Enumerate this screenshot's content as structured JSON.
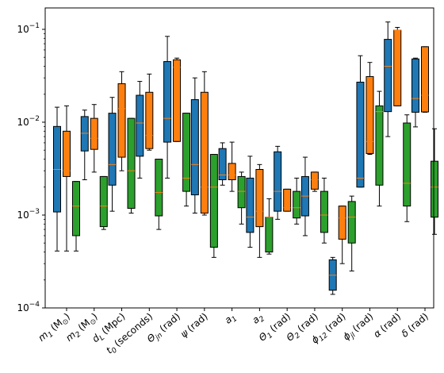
{
  "chart_data": {
    "type": "box",
    "title": "",
    "xlabel": "",
    "ylabel": "",
    "yscale": "log",
    "ylim": [
      0.0001,
      0.17
    ],
    "grid": false,
    "legend": "none",
    "yticks": [
      {
        "value": 0.0001,
        "base": "10",
        "exp": "−4"
      },
      {
        "value": 0.001,
        "base": "10",
        "exp": "−3"
      },
      {
        "value": 0.01,
        "base": "10",
        "exp": "−2"
      },
      {
        "value": 0.1,
        "base": "10",
        "exp": "−1"
      }
    ],
    "categories": [
      {
        "main": "m",
        "sub": "1",
        "unit": "(M",
        "unitsub": "⊙",
        "close": ")"
      },
      {
        "main": "m",
        "sub": "2",
        "unit": "(M",
        "unitsub": "⊙",
        "close": ")"
      },
      {
        "main": "d",
        "sub": "L",
        "unit": "(Mpc)",
        "unitsub": "",
        "close": ""
      },
      {
        "main": "t",
        "sub": "0",
        "unit": "(seconds)",
        "unitsub": "",
        "close": ""
      },
      {
        "main": "Θ",
        "sub": "jn",
        "unit": "(rad)",
        "unitsub": "",
        "close": ""
      },
      {
        "main": "ψ",
        "sub": "",
        "unit": "(rad)",
        "unitsub": "",
        "close": ""
      },
      {
        "main": "a",
        "sub": "1",
        "unit": "",
        "unitsub": "",
        "close": ""
      },
      {
        "main": "a",
        "sub": "2",
        "unit": "",
        "unitsub": "",
        "close": ""
      },
      {
        "main": "Θ",
        "sub": "1",
        "unit": "(rad)",
        "unitsub": "",
        "close": ""
      },
      {
        "main": "Θ",
        "sub": "2",
        "unit": "(rad)",
        "unitsub": "",
        "close": ""
      },
      {
        "main": "ϕ",
        "sub": "12",
        "unit": "(rad)",
        "unitsub": "",
        "close": ""
      },
      {
        "main": "ϕ",
        "sub": "jl",
        "unit": "(rad)",
        "unitsub": "",
        "close": ""
      },
      {
        "main": "α",
        "sub": "",
        "unit": "(rad)",
        "unitsub": "",
        "close": ""
      },
      {
        "main": "δ",
        "sub": "",
        "unit": "(rad)",
        "unitsub": "",
        "close": ""
      }
    ],
    "colors": {
      "blue": "#1f77b4",
      "orange": "#ff7f0e",
      "green": "#2ca02c",
      "median": "#ff7f0e",
      "whisker": "#000000"
    },
    "series": [
      {
        "color": "blue",
        "boxes": [
          {
            "whislo": 0.00041,
            "q1": 0.00108,
            "med": 0.0031,
            "q3": 0.009,
            "whishi": 0.0145
          },
          {
            "whislo": 0.0024,
            "q1": 0.0049,
            "med": 0.0076,
            "q3": 0.0115,
            "whishi": 0.0135
          },
          {
            "whislo": 0.0011,
            "q1": 0.0021,
            "med": 0.0035,
            "q3": 0.0125,
            "whishi": 0.0185
          },
          {
            "whislo": 0.0025,
            "q1": 0.0043,
            "med": 0.0098,
            "q3": 0.0195,
            "whishi": 0.0275
          },
          {
            "whislo": 0.0025,
            "q1": 0.0061,
            "med": 0.011,
            "q3": 0.045,
            "whishi": 0.084
          },
          {
            "whislo": 0.00105,
            "q1": 0.00165,
            "med": 0.0035,
            "q3": 0.0175,
            "whishi": 0.03
          },
          {
            "whislo": 0.0021,
            "q1": 0.0024,
            "med": 0.0027,
            "q3": 0.0052,
            "whishi": 0.006
          },
          {
            "whislo": 0.00045,
            "q1": 0.00065,
            "med": 0.00095,
            "q3": 0.0025,
            "whishi": 0.0043
          },
          {
            "whislo": 0.0009,
            "q1": 0.0011,
            "med": 0.0018,
            "q3": 0.0048,
            "whishi": 0.0055
          },
          {
            "whislo": 0.0006,
            "q1": 0.00098,
            "med": 0.0016,
            "q3": 0.0026,
            "whishi": 0.0042
          },
          {
            "whislo": 0.00014,
            "q1": 0.000155,
            "med": 0.000225,
            "q3": 0.00033,
            "whishi": 0.00035
          },
          {
            "whislo": 0.002,
            "q1": 0.002,
            "med": 0.0025,
            "q3": 0.027,
            "whishi": 0.052
          },
          {
            "whislo": 0.007,
            "q1": 0.013,
            "med": 0.04,
            "q3": 0.078,
            "whishi": 0.12
          },
          {
            "whislo": 0.0089,
            "q1": 0.0128,
            "med": 0.018,
            "q3": 0.048,
            "whishi": 0.049
          }
        ]
      },
      {
        "color": "orange",
        "boxes": [
          {
            "whislo": 0.00041,
            "q1": 0.0026,
            "med": 0.003,
            "q3": 0.008,
            "whishi": 0.015
          },
          {
            "whislo": 0.0029,
            "q1": 0.0051,
            "med": 0.0067,
            "q3": 0.011,
            "whishi": 0.0155
          },
          {
            "whislo": 0.003,
            "q1": 0.0042,
            "med": 0.014,
            "q3": 0.026,
            "whishi": 0.035
          },
          {
            "whislo": 0.005,
            "q1": 0.0052,
            "med": 0.0072,
            "q3": 0.021,
            "whishi": 0.033
          },
          {
            "whislo": 0.0062,
            "q1": 0.0062,
            "med": 0.039,
            "q3": 0.047,
            "whishi": 0.049
          },
          {
            "whislo": 0.001,
            "q1": 0.00105,
            "med": 0.002,
            "q3": 0.021,
            "whishi": 0.035
          },
          {
            "whislo": 0.0018,
            "q1": 0.0024,
            "med": 0.0027,
            "q3": 0.0036,
            "whishi": 0.0061
          },
          {
            "whislo": 0.00035,
            "q1": 0.00075,
            "med": 0.0011,
            "q3": 0.0031,
            "whishi": 0.0035
          },
          {
            "whislo": 0.0011,
            "q1": 0.0011,
            "med": 0.0012,
            "q3": 0.0019,
            "whishi": 0.0019
          },
          {
            "whislo": 0.0018,
            "q1": 0.0019,
            "med": 0.0024,
            "q3": 0.0029,
            "whishi": 0.0029
          },
          {
            "whislo": 0.0003,
            "q1": 0.00055,
            "med": 0.00093,
            "q3": 0.00125,
            "whishi": 0.00125
          },
          {
            "whislo": 0.0045,
            "q1": 0.0046,
            "med": 0.0062,
            "q3": 0.031,
            "whishi": 0.044
          },
          {
            "whislo": 0.015,
            "q1": 0.015,
            "med": 0.098,
            "q3": 0.098,
            "whishi": 0.105
          },
          {
            "whislo": 0.0128,
            "q1": 0.0129,
            "med": 0.0195,
            "q3": 0.065,
            "whishi": 0.065
          }
        ]
      },
      {
        "color": "green",
        "boxes": [
          {
            "whislo": 0.00041,
            "q1": 0.0006,
            "med": 0.00125,
            "q3": 0.0023,
            "whishi": 0.0023
          },
          {
            "whislo": 0.0007,
            "q1": 0.00075,
            "med": 0.00125,
            "q3": 0.0026,
            "whishi": 0.0026
          },
          {
            "whislo": 0.00105,
            "q1": 0.00118,
            "med": 0.003,
            "q3": 0.011,
            "whishi": 0.011
          },
          {
            "whislo": 0.0007,
            "q1": 0.00098,
            "med": 0.00175,
            "q3": 0.004,
            "whishi": 0.004
          },
          {
            "whislo": 0.00125,
            "q1": 0.0018,
            "med": 0.0025,
            "q3": 0.0125,
            "whishi": 0.0125
          },
          {
            "whislo": 0.00035,
            "q1": 0.00045,
            "med": 0.002,
            "q3": 0.0045,
            "whishi": 0.0045
          },
          {
            "whislo": 0.0008,
            "q1": 0.0012,
            "med": 0.0018,
            "q3": 0.0026,
            "whishi": 0.0029
          },
          {
            "whislo": 0.00038,
            "q1": 0.0004,
            "med": 0.00095,
            "q3": 0.00095,
            "whishi": 0.0015
          },
          {
            "whislo": 0.0008,
            "q1": 0.00093,
            "med": 0.0012,
            "q3": 0.0018,
            "whishi": 0.0025
          },
          {
            "whislo": 0.0005,
            "q1": 0.00065,
            "med": 0.001,
            "q3": 0.0018,
            "whishi": 0.0025
          },
          {
            "whislo": 0.00025,
            "q1": 0.0005,
            "med": 0.00095,
            "q3": 0.0014,
            "whishi": 0.0016
          },
          {
            "whislo": 0.00125,
            "q1": 0.0021,
            "med": 0.013,
            "q3": 0.015,
            "whishi": 0.0215
          },
          {
            "whislo": 0.00085,
            "q1": 0.00125,
            "med": 0.0022,
            "q3": 0.0098,
            "whishi": 0.012
          },
          {
            "whislo": 0.00062,
            "q1": 0.00095,
            "med": 0.002,
            "q3": 0.0038,
            "whishi": 0.0085
          }
        ]
      }
    ]
  }
}
